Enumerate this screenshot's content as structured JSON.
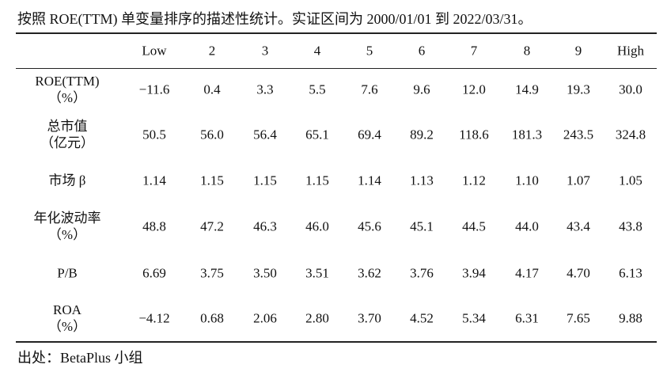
{
  "title": "按照 ROE(TTM) 单变量排序的描述性统计。实证区间为 2000/01/01 到 2022/03/31。",
  "table": {
    "header": [
      "Low",
      "2",
      "3",
      "4",
      "5",
      "6",
      "7",
      "8",
      "9",
      "High"
    ],
    "rows": [
      {
        "label": [
          "ROE(TTM)",
          "（%）"
        ],
        "values": [
          "−11.6",
          "0.4",
          "3.3",
          "5.5",
          "7.6",
          "9.6",
          "12.0",
          "14.9",
          "19.3",
          "30.0"
        ]
      },
      {
        "label": [
          "总市值",
          "（亿元）"
        ],
        "values": [
          "50.5",
          "56.0",
          "56.4",
          "65.1",
          "69.4",
          "89.2",
          "118.6",
          "181.3",
          "243.5",
          "324.8"
        ]
      },
      {
        "label": [
          "市场 β"
        ],
        "values": [
          "1.14",
          "1.15",
          "1.15",
          "1.15",
          "1.14",
          "1.13",
          "1.12",
          "1.10",
          "1.07",
          "1.05"
        ]
      },
      {
        "label": [
          "年化波动率",
          "（%）"
        ],
        "values": [
          "48.8",
          "47.2",
          "46.3",
          "46.0",
          "45.6",
          "45.1",
          "44.5",
          "44.0",
          "43.4",
          "43.8"
        ]
      },
      {
        "label": [
          "P/B"
        ],
        "values": [
          "6.69",
          "3.75",
          "3.50",
          "3.51",
          "3.62",
          "3.76",
          "3.94",
          "4.17",
          "4.70",
          "6.13"
        ]
      },
      {
        "label": [
          "ROA",
          "（%）"
        ],
        "values": [
          "−4.12",
          "0.68",
          "2.06",
          "2.80",
          "3.70",
          "4.52",
          "5.34",
          "6.31",
          "7.65",
          "9.88"
        ]
      }
    ]
  },
  "source": "出处：BetaPlus 小组"
}
